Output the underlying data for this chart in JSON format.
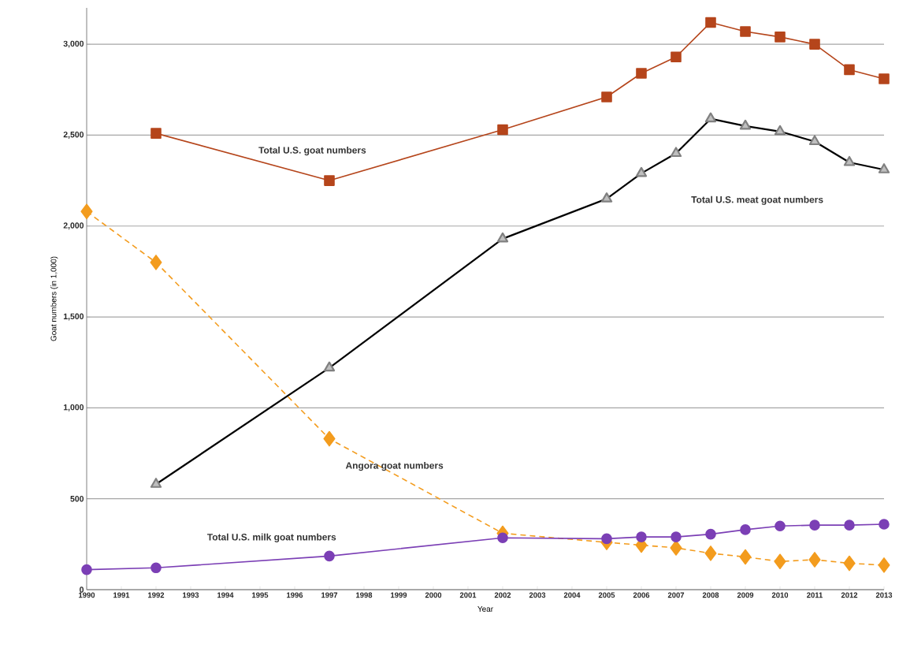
{
  "chart_data": {
    "type": "line",
    "xlabel": "Year",
    "ylabel": "Goat numbers (in 1,000)",
    "x": [
      1992,
      1997,
      2002,
      2005,
      2006,
      2007,
      2008,
      2009,
      2010,
      2011,
      2012,
      2013
    ],
    "series": [
      {
        "color": "#b5451b",
        "marker": "square",
        "line_style": "solid",
        "values": [
          2510,
          2250,
          2530,
          2710,
          2840,
          2930,
          3120,
          3070,
          3040,
          3000,
          2860,
          2810
        ]
      },
      {
        "color": "#000000",
        "marker": "triangle",
        "line_style": "solid",
        "values": [
          580,
          1220,
          1930,
          2150,
          2290,
          2400,
          2590,
          2550,
          2520,
          2465,
          2350,
          2310
        ]
      },
      {
        "color": "#f39c1e",
        "marker": "diamond",
        "line_style": "dashed",
        "x": [
          1990,
          1992,
          1997,
          2002,
          2005,
          2006,
          2007,
          2008,
          2009,
          2010,
          2011,
          2012,
          2013
        ],
        "values": [
          2080,
          1800,
          830,
          310,
          260,
          245,
          230,
          200,
          180,
          155,
          165,
          145,
          135
        ]
      },
      {
        "color": "#7b3fb5",
        "marker": "circle",
        "line_style": "solid",
        "x": [
          1990,
          1992,
          1997,
          2002,
          2005,
          2006,
          2007,
          2008,
          2009,
          2010,
          2011,
          2012,
          2013
        ],
        "values": [
          110,
          120,
          185,
          285,
          280,
          290,
          290,
          305,
          330,
          350,
          355,
          355,
          360
        ]
      }
    ],
    "annotations": [
      "Total U.S. goat numbers",
      "Total U.S. meat goat numbers",
      "Angora      goat numbers",
      "Total U.S. milk goat numbers"
    ],
    "xlim": [
      1990,
      2013
    ],
    "ylim": [
      0,
      3200
    ],
    "xticks": [
      1990,
      1991,
      1992,
      1993,
      1994,
      1995,
      1996,
      1997,
      1998,
      1999,
      2000,
      2001,
      2002,
      2003,
      2004,
      2005,
      2006,
      2007,
      2008,
      2009,
      2010,
      2011,
      2012,
      2013
    ],
    "yticks": [
      0,
      500,
      {
        "value": 1000,
        "label": "1,000"
      },
      {
        "value": 1500,
        "label": "1,500"
      },
      {
        "value": 2000,
        "label": "2,000"
      },
      {
        "value": 2500,
        "label": "2,500"
      },
      {
        "value": 3000,
        "label": "3,000"
      }
    ],
    "grid": "y"
  }
}
